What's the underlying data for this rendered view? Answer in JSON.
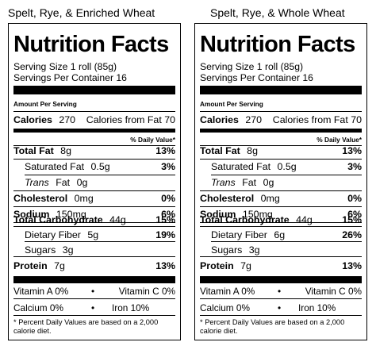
{
  "panels": [
    {
      "title": "Spelt, Rye, & Enriched Wheat",
      "heading": "Nutrition Facts",
      "serving_size": "Serving Size 1 roll (85g)",
      "servings_per_container": "Servings Per Container 16",
      "amount_per_serving": "Amount Per Serving",
      "calories_label": "Calories",
      "calories_value": "270",
      "calories_from_fat": "Calories from Fat 70",
      "daily_value_header": "% Daily Value*",
      "total_fat": {
        "label": "Total Fat",
        "amount": "8g",
        "dv": "13%"
      },
      "saturated_fat": {
        "label": "Saturated Fat",
        "amount": "0.5g",
        "dv": "3%"
      },
      "trans_fat": {
        "label": "Trans",
        "label_rest": "Fat",
        "amount": "0g"
      },
      "cholesterol": {
        "label": "Cholesterol",
        "amount": "0mg",
        "dv": "0%"
      },
      "sodium": {
        "label": "Sodium",
        "amount": "150mg",
        "dv": "6%"
      },
      "total_carbohydrate": {
        "label": "Total Carbohydrate",
        "amount": "44g",
        "dv": "15%"
      },
      "dietary_fiber": {
        "label": "Dietary Fiber",
        "amount": "5g",
        "dv": "19%"
      },
      "sugars": {
        "label": "Sugars",
        "amount": "3g"
      },
      "protein": {
        "label": "Protein",
        "amount": "7g",
        "dv": "13%"
      },
      "vitamin_a": "Vitamin A 0%",
      "vitamin_c": "Vitamin C 0%",
      "calcium": "Calcium 0%",
      "iron": "Iron 10%",
      "bullet": "•",
      "footnote": "* Percent Daily Values are based on a 2,000 calorie diet."
    },
    {
      "title": "Spelt, Rye, & Whole Wheat",
      "heading": "Nutrition Facts",
      "serving_size": "Serving Size 1 roll (85g)",
      "servings_per_container": "Servings Per Container 16",
      "amount_per_serving": "Amount Per Serving",
      "calories_label": "Calories",
      "calories_value": "270",
      "calories_from_fat": "Calories from Fat 70",
      "daily_value_header": "% Daily Value*",
      "total_fat": {
        "label": "Total Fat",
        "amount": "8g",
        "dv": "13%"
      },
      "saturated_fat": {
        "label": "Saturated Fat",
        "amount": "0.5g",
        "dv": "3%"
      },
      "trans_fat": {
        "label": "Trans",
        "label_rest": "Fat",
        "amount": "0g"
      },
      "cholesterol": {
        "label": "Cholesterol",
        "amount": "0mg",
        "dv": "0%"
      },
      "sodium": {
        "label": "Sodium",
        "amount": "150mg",
        "dv": "6%"
      },
      "total_carbohydrate": {
        "label": "Total Carbohydrate",
        "amount": "44g",
        "dv": "15%"
      },
      "dietary_fiber": {
        "label": "Dietary Fiber",
        "amount": "6g",
        "dv": "26%"
      },
      "sugars": {
        "label": "Sugars",
        "amount": "3g"
      },
      "protein": {
        "label": "Protein",
        "amount": "7g",
        "dv": "13%"
      },
      "vitamin_a": "Vitamin A 0%",
      "vitamin_c": "Vitamin C 0%",
      "calcium": "Calcium 0%",
      "iron": "Iron 10%",
      "bullet": "•",
      "footnote": "* Percent Daily Values are based on a 2,000 calorie diet."
    }
  ]
}
